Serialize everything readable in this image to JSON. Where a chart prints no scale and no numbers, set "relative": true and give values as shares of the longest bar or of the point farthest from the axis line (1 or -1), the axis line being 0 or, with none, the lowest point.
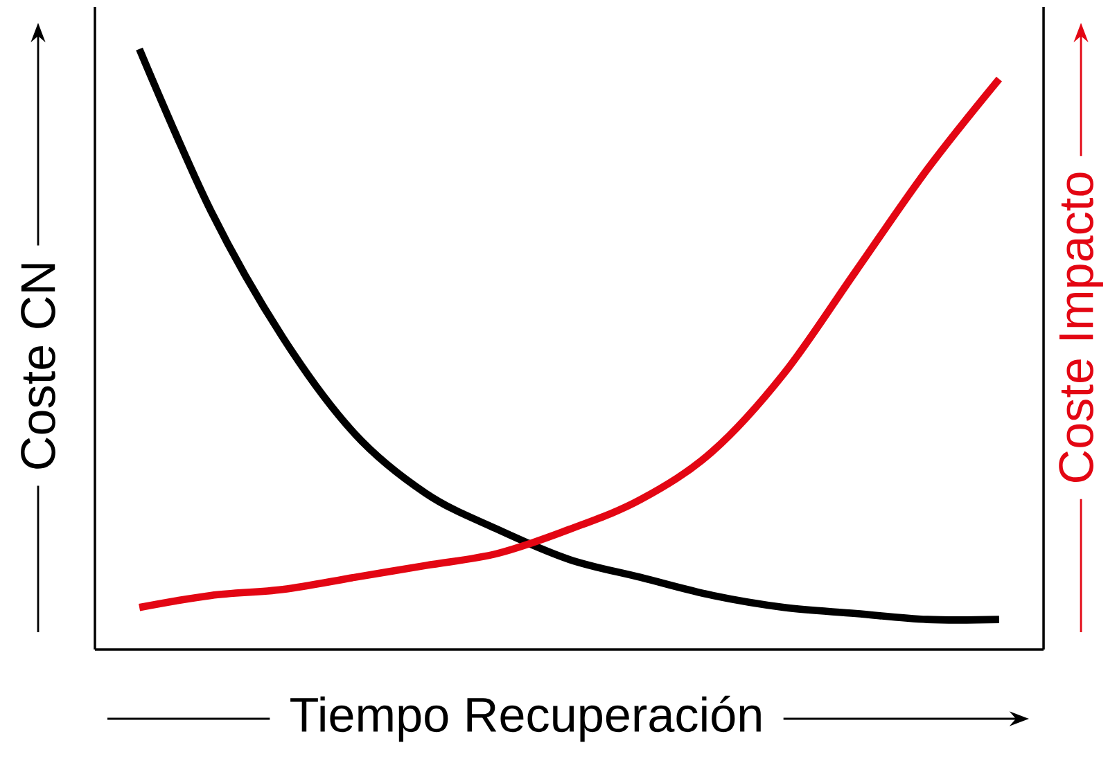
{
  "chart_data": {
    "type": "line",
    "relative": true,
    "xlabel": "Tiempo Recuperación",
    "ylabel": "Coste CN",
    "y2label": "Coste Impacto",
    "marker": "none",
    "line_style": "solid",
    "categories": [
      null,
      null,
      null,
      null,
      null,
      null,
      null,
      null,
      null,
      null,
      null,
      null,
      null
    ],
    "series": [
      {
        "color": "#000000",
        "values": [
          1.0,
          0.73,
          0.52,
          0.36,
          0.26,
          0.2,
          0.15,
          0.12,
          0.09,
          0.07,
          0.06,
          0.05,
          0.05
        ]
      },
      {
        "color": "#e30613",
        "values": [
          0.07,
          0.09,
          0.1,
          0.12,
          0.14,
          0.16,
          0.2,
          0.25,
          0.33,
          0.46,
          0.63,
          0.8,
          0.95
        ]
      }
    ]
  }
}
